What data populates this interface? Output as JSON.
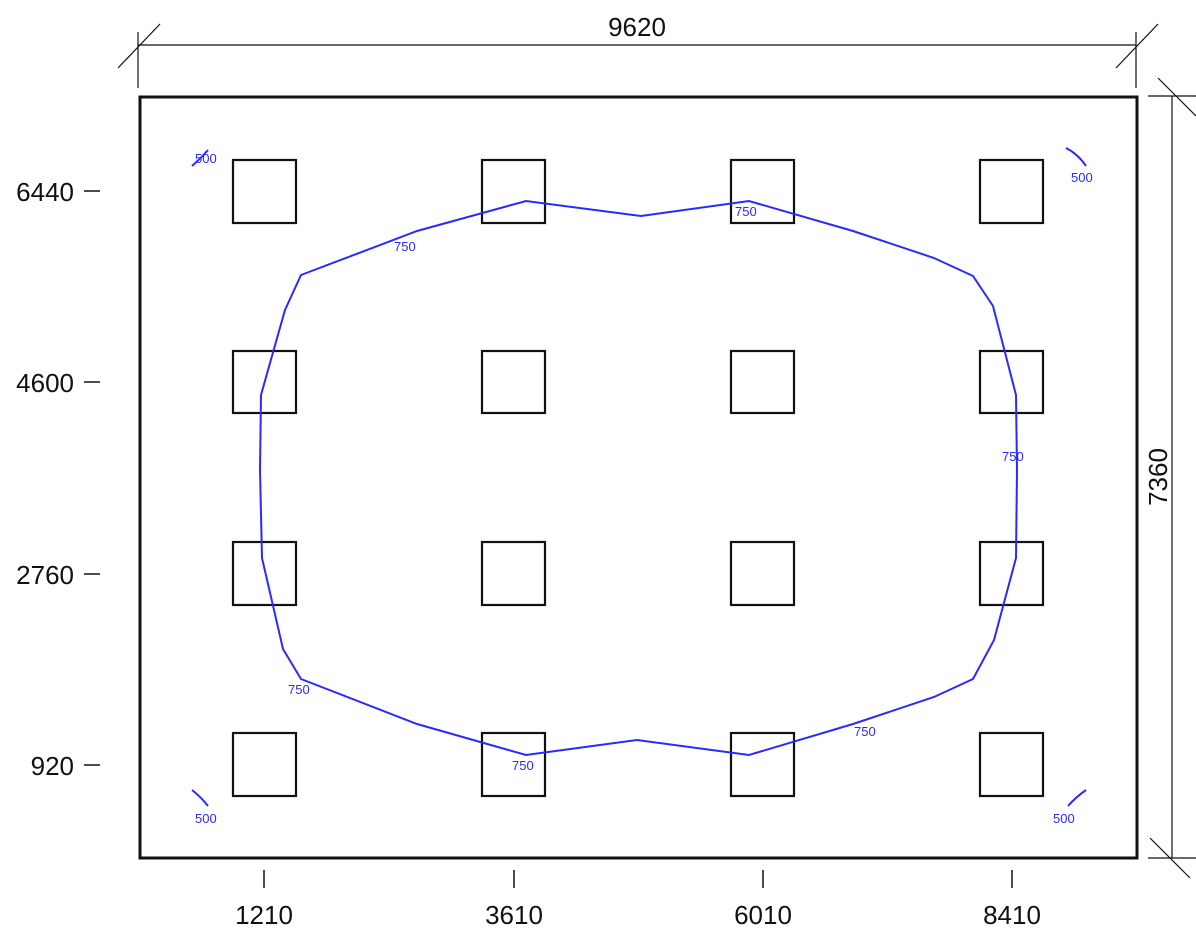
{
  "drawing": {
    "overall_width_label": "9620",
    "overall_height_label": "7360",
    "x_grid_labels": [
      "1210",
      "3610",
      "6010",
      "8410"
    ],
    "y_grid_labels": [
      "6440",
      "4600",
      "2760",
      "920"
    ]
  },
  "contours": {
    "color": "#2a2aff",
    "corner_labels": [
      "500",
      "500",
      "500",
      "500"
    ],
    "inner_labels": [
      "750",
      "750",
      "750",
      "750",
      "750",
      "750"
    ]
  },
  "colors": {
    "outline": "#111111",
    "contour": "#2a2aff",
    "background": "#ffffff"
  }
}
